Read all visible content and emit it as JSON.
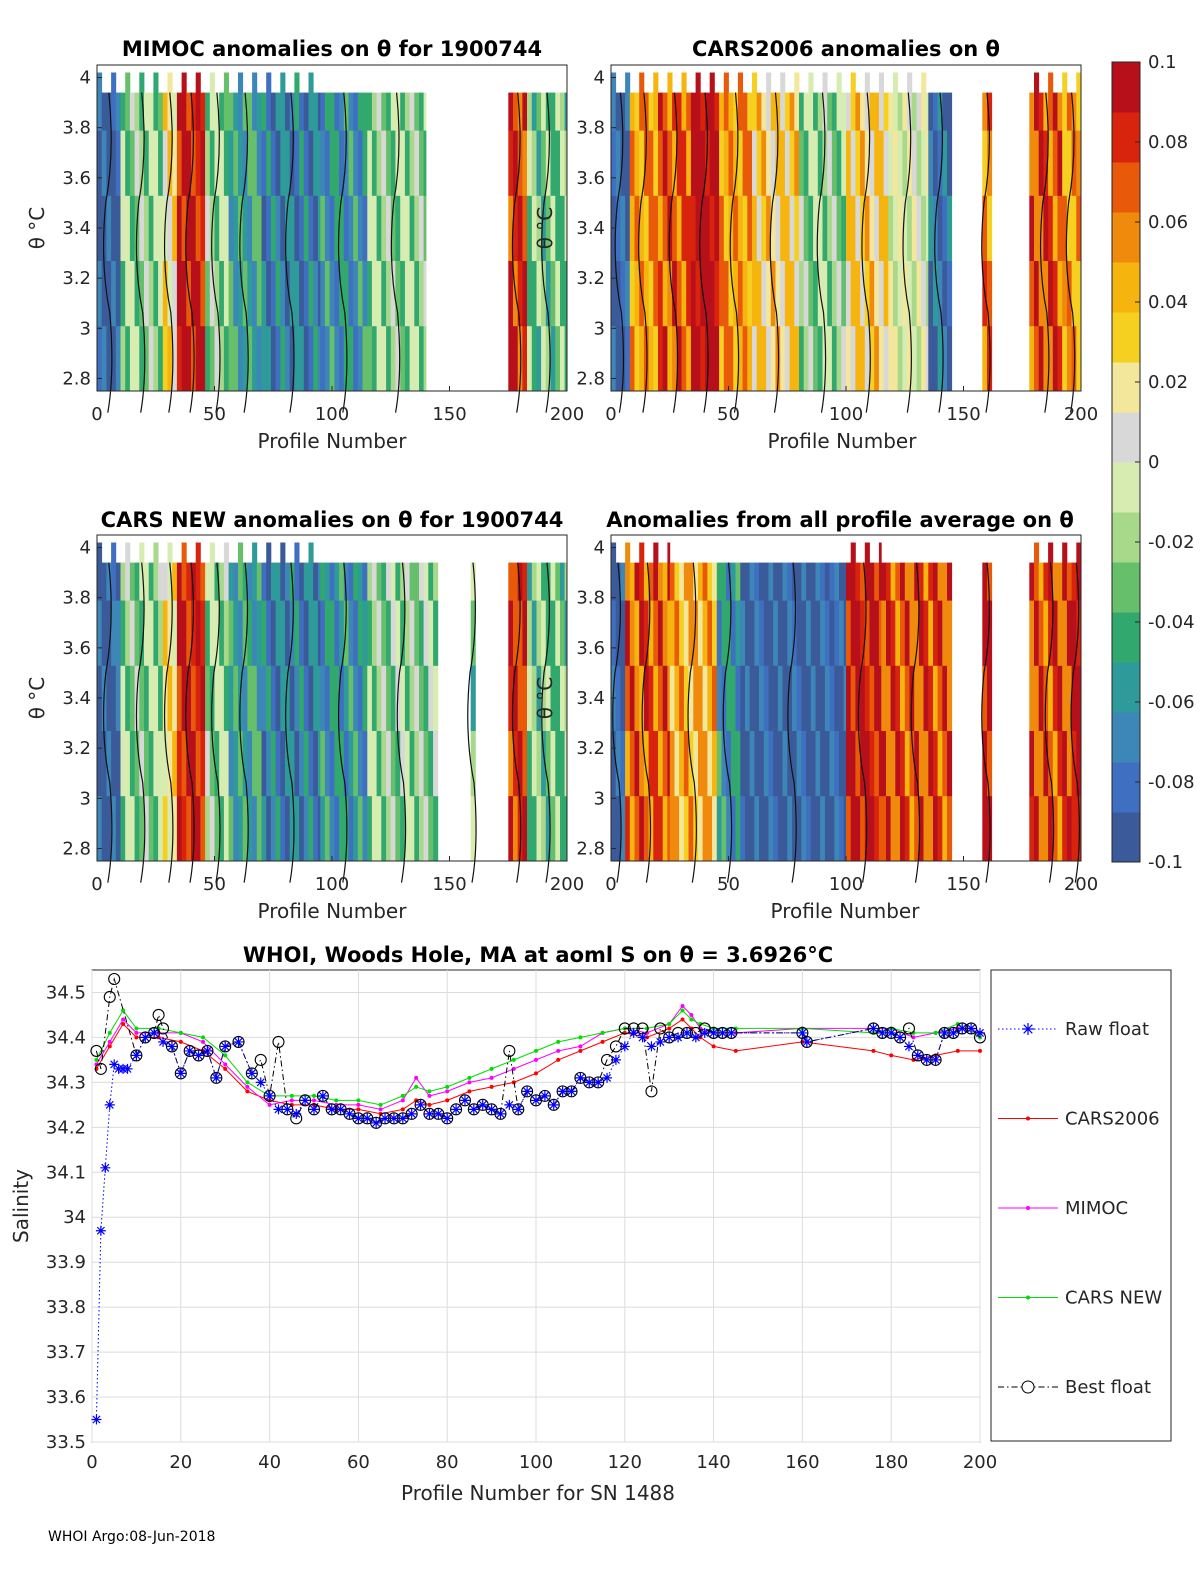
{
  "footer": "WHOI Argo:08-Jun-2018",
  "colorbar": {
    "ticks": [
      "0.1",
      "0.08",
      "0.06",
      "0.04",
      "0.02",
      "0",
      "-0.02",
      "-0.04",
      "-0.06",
      "-0.08",
      "-0.1"
    ],
    "range": [
      -0.1,
      0.1
    ],
    "colors": [
      "#3b5a9a",
      "#3f6fc0",
      "#3d86b8",
      "#2e9a9a",
      "#30a86e",
      "#66bf6a",
      "#a8d88a",
      "#d6ecb0",
      "#d8d8d8",
      "#f2e79a",
      "#f5d020",
      "#f6b40f",
      "#f08a0c",
      "#e85a0a",
      "#d8240d",
      "#b8101a"
    ]
  },
  "chart_data": [
    {
      "type": "heatmap",
      "title": "MIMOC anomalies on θ  for 1900744",
      "xlabel": "Profile Number",
      "ylabel": "θ °C",
      "xlim": [
        0,
        200
      ],
      "ylim": [
        2.75,
        4.05
      ],
      "xticks": [
        "0",
        "50",
        "100",
        "150",
        "200"
      ],
      "yticks": [
        "2.8",
        "3",
        "3.2",
        "3.4",
        "3.6",
        "3.8",
        "4"
      ],
      "pattern": [
        {
          "from": 0,
          "to": 10,
          "value": -0.09
        },
        {
          "from": 10,
          "to": 28,
          "value": -0.02
        },
        {
          "from": 28,
          "to": 34,
          "value": 0.02
        },
        {
          "from": 34,
          "to": 46,
          "value": 0.09
        },
        {
          "from": 46,
          "to": 56,
          "value": -0.02
        },
        {
          "from": 56,
          "to": 70,
          "value": -0.05
        },
        {
          "from": 70,
          "to": 95,
          "value": -0.07
        },
        {
          "from": 95,
          "to": 115,
          "value": -0.06
        },
        {
          "from": 115,
          "to": 140,
          "value": -0.02
        },
        {
          "from": 175,
          "to": 183,
          "value": 0.08
        },
        {
          "from": 183,
          "to": 200,
          "value": -0.03
        }
      ]
    },
    {
      "type": "heatmap",
      "title": "CARS2006 anomalies on θ",
      "xlabel": "Profile Number",
      "ylabel": "θ °C",
      "xlim": [
        0,
        200
      ],
      "ylim": [
        2.75,
        4.05
      ],
      "xticks": [
        "0",
        "50",
        "100",
        "150",
        "200"
      ],
      "yticks": [
        "2.8",
        "3",
        "3.2",
        "3.4",
        "3.6",
        "3.8",
        "4"
      ],
      "pattern": [
        {
          "from": 0,
          "to": 8,
          "value": -0.09
        },
        {
          "from": 8,
          "to": 20,
          "value": 0.05
        },
        {
          "from": 20,
          "to": 34,
          "value": 0.07
        },
        {
          "from": 34,
          "to": 46,
          "value": 0.1
        },
        {
          "from": 46,
          "to": 60,
          "value": 0.05
        },
        {
          "from": 60,
          "to": 80,
          "value": 0.03
        },
        {
          "from": 80,
          "to": 100,
          "value": -0.02
        },
        {
          "from": 100,
          "to": 118,
          "value": 0.03
        },
        {
          "from": 118,
          "to": 135,
          "value": 0.0
        },
        {
          "from": 135,
          "to": 145,
          "value": -0.08
        },
        {
          "from": 158,
          "to": 162,
          "value": 0.06
        },
        {
          "from": 178,
          "to": 192,
          "value": 0.07
        },
        {
          "from": 192,
          "to": 200,
          "value": 0.05
        }
      ]
    },
    {
      "type": "heatmap",
      "title": "CARS NEW anomalies on θ for 1900744",
      "xlabel": "Profile Number",
      "ylabel": "θ °C",
      "xlim": [
        0,
        200
      ],
      "ylim": [
        2.75,
        4.05
      ],
      "xticks": [
        "0",
        "50",
        "100",
        "150",
        "200"
      ],
      "yticks": [
        "2.8",
        "3",
        "3.2",
        "3.4",
        "3.6",
        "3.8",
        "4"
      ],
      "pattern": [
        {
          "from": 0,
          "to": 10,
          "value": -0.09
        },
        {
          "from": 10,
          "to": 28,
          "value": -0.02
        },
        {
          "from": 28,
          "to": 34,
          "value": 0.02
        },
        {
          "from": 34,
          "to": 46,
          "value": 0.09
        },
        {
          "from": 46,
          "to": 56,
          "value": -0.02
        },
        {
          "from": 56,
          "to": 70,
          "value": -0.05
        },
        {
          "from": 70,
          "to": 95,
          "value": -0.07
        },
        {
          "from": 95,
          "to": 115,
          "value": -0.06
        },
        {
          "from": 115,
          "to": 145,
          "value": -0.02
        },
        {
          "from": 159,
          "to": 161,
          "value": -0.03
        },
        {
          "from": 175,
          "to": 183,
          "value": 0.08
        },
        {
          "from": 183,
          "to": 200,
          "value": -0.03
        }
      ]
    },
    {
      "type": "heatmap",
      "title": "Anomalies from all profile average on θ",
      "xlabel": "Profile Number",
      "ylabel": "θ °C",
      "xlim": [
        0,
        200
      ],
      "ylim": [
        2.75,
        4.05
      ],
      "xticks": [
        "0",
        "50",
        "100",
        "150",
        "200"
      ],
      "yticks": [
        "2.8",
        "3",
        "3.2",
        "3.4",
        "3.6",
        "3.8",
        "4"
      ],
      "pattern": [
        {
          "from": 0,
          "to": 6,
          "value": -0.09
        },
        {
          "from": 6,
          "to": 25,
          "value": 0.07
        },
        {
          "from": 25,
          "to": 45,
          "value": 0.04
        },
        {
          "from": 45,
          "to": 55,
          "value": -0.06
        },
        {
          "from": 55,
          "to": 100,
          "value": -0.09
        },
        {
          "from": 100,
          "to": 115,
          "value": 0.09
        },
        {
          "from": 115,
          "to": 145,
          "value": 0.07
        },
        {
          "from": 158,
          "to": 162,
          "value": 0.09
        },
        {
          "from": 178,
          "to": 196,
          "value": 0.07
        },
        {
          "from": 196,
          "to": 200,
          "value": 0.1
        }
      ]
    },
    {
      "type": "line",
      "title": "WHOI, Woods Hole, MA at aoml S on θ = 3.6926°C",
      "xlabel": "Profile Number for SN 1488",
      "ylabel": "Salinity",
      "xlim": [
        0,
        200
      ],
      "ylim": [
        33.5,
        34.55
      ],
      "xticks": [
        "0",
        "20",
        "40",
        "60",
        "80",
        "100",
        "120",
        "140",
        "160",
        "180",
        "200"
      ],
      "yticks": [
        "33.5",
        "33.6",
        "33.7",
        "33.8",
        "33.9",
        "34",
        "34.1",
        "34.2",
        "34.3",
        "34.4",
        "34.5"
      ],
      "legend_position": "outside-right",
      "series": [
        {
          "name": "Raw float",
          "color": "#0000ff",
          "marker": "asterisk",
          "x": [
            1,
            2,
            3,
            4,
            5,
            6,
            7,
            8,
            10,
            12,
            14,
            16,
            18,
            20,
            22,
            24,
            26,
            28,
            30,
            33,
            36,
            38,
            40,
            42,
            44,
            46,
            48,
            50,
            52,
            54,
            56,
            58,
            60,
            62,
            64,
            66,
            68,
            70,
            72,
            74,
            76,
            78,
            80,
            82,
            84,
            86,
            88,
            90,
            92,
            94,
            96,
            98,
            100,
            102,
            104,
            106,
            108,
            110,
            112,
            114,
            116,
            118,
            120,
            122,
            124,
            126,
            128,
            130,
            132,
            134,
            136,
            138,
            140,
            142,
            144,
            160,
            161,
            176,
            178,
            180,
            182,
            184,
            186,
            188,
            190,
            192,
            194,
            196,
            198,
            200
          ],
          "y": [
            33.55,
            33.97,
            34.11,
            34.25,
            34.34,
            34.33,
            34.33,
            34.33,
            34.36,
            34.4,
            34.41,
            34.39,
            34.38,
            34.32,
            34.37,
            34.36,
            34.37,
            34.31,
            34.38,
            34.39,
            34.32,
            34.3,
            34.27,
            34.24,
            34.24,
            34.23,
            34.26,
            34.24,
            34.27,
            34.24,
            34.24,
            34.23,
            34.22,
            34.22,
            34.21,
            34.22,
            34.22,
            34.22,
            34.23,
            34.25,
            34.23,
            34.23,
            34.22,
            34.24,
            34.26,
            34.24,
            34.25,
            34.24,
            34.23,
            34.25,
            34.24,
            34.28,
            34.26,
            34.27,
            34.25,
            34.28,
            34.28,
            34.31,
            34.3,
            34.3,
            34.31,
            34.35,
            34.38,
            34.41,
            34.4,
            34.38,
            34.39,
            34.4,
            34.4,
            34.41,
            34.4,
            34.41,
            34.41,
            34.41,
            34.41,
            34.41,
            34.39,
            34.42,
            34.41,
            34.41,
            34.4,
            34.38,
            34.36,
            34.35,
            34.35,
            34.41,
            34.41,
            34.42,
            34.42,
            34.41
          ]
        },
        {
          "name": "CARS2006",
          "color": "#ff0000",
          "marker": "dot",
          "x": [
            1,
            4,
            7,
            10,
            15,
            20,
            25,
            30,
            35,
            40,
            45,
            50,
            55,
            60,
            65,
            70,
            73,
            76,
            80,
            85,
            90,
            95,
            100,
            105,
            110,
            115,
            120,
            125,
            130,
            133,
            135,
            137,
            140,
            145,
            160,
            176,
            180,
            185,
            190,
            195,
            200
          ],
          "y": [
            34.33,
            34.38,
            34.43,
            34.4,
            34.4,
            34.39,
            34.37,
            34.33,
            34.28,
            34.26,
            34.25,
            34.25,
            34.24,
            34.24,
            34.23,
            34.24,
            34.26,
            34.25,
            34.26,
            34.28,
            34.29,
            34.3,
            34.32,
            34.35,
            34.37,
            34.39,
            34.41,
            34.4,
            34.42,
            34.44,
            34.42,
            34.4,
            34.38,
            34.37,
            34.39,
            34.37,
            34.36,
            34.35,
            34.36,
            34.37,
            34.37
          ]
        },
        {
          "name": "MIMOC",
          "color": "#ff00ff",
          "marker": "dot",
          "x": [
            1,
            4,
            7,
            10,
            15,
            20,
            25,
            30,
            35,
            40,
            45,
            50,
            55,
            60,
            65,
            70,
            73,
            76,
            80,
            85,
            90,
            95,
            100,
            105,
            110,
            115,
            120,
            125,
            130,
            133,
            135,
            137,
            140,
            145,
            160,
            176,
            180,
            185,
            190,
            195,
            200
          ],
          "y": [
            34.34,
            34.39,
            34.44,
            34.41,
            34.41,
            34.41,
            34.39,
            34.34,
            34.29,
            34.25,
            34.26,
            34.26,
            34.25,
            34.25,
            34.24,
            34.26,
            34.31,
            34.27,
            34.28,
            34.3,
            34.31,
            34.33,
            34.35,
            34.37,
            34.38,
            34.41,
            34.42,
            34.41,
            34.43,
            34.47,
            34.45,
            34.42,
            34.41,
            34.41,
            34.42,
            34.42,
            34.42,
            34.4,
            34.41,
            34.42,
            34.41
          ]
        },
        {
          "name": "CARS NEW",
          "color": "#00dd00",
          "marker": "dot",
          "x": [
            1,
            4,
            7,
            10,
            15,
            20,
            25,
            30,
            35,
            40,
            45,
            50,
            55,
            60,
            65,
            70,
            73,
            76,
            80,
            85,
            90,
            95,
            100,
            105,
            110,
            115,
            120,
            125,
            130,
            133,
            135,
            137,
            140,
            145,
            160,
            176,
            180,
            185,
            190,
            195,
            200
          ],
          "y": [
            34.35,
            34.41,
            34.46,
            34.42,
            34.42,
            34.41,
            34.4,
            34.36,
            34.3,
            34.27,
            34.27,
            34.27,
            34.26,
            34.26,
            34.25,
            34.27,
            34.29,
            34.28,
            34.29,
            34.31,
            34.33,
            34.35,
            34.37,
            34.39,
            34.4,
            34.41,
            34.42,
            34.42,
            34.43,
            34.46,
            34.44,
            34.43,
            34.42,
            34.42,
            34.42,
            34.41,
            34.42,
            34.41,
            34.41,
            34.43,
            34.4
          ]
        },
        {
          "name": "Best float",
          "color": "#000000",
          "marker": "circle",
          "x": [
            1,
            2,
            4,
            5,
            10,
            12,
            14,
            15,
            16,
            18,
            20,
            22,
            24,
            26,
            28,
            30,
            33,
            36,
            38,
            40,
            42,
            44,
            46,
            48,
            50,
            52,
            54,
            56,
            58,
            60,
            62,
            64,
            66,
            68,
            70,
            72,
            74,
            76,
            78,
            80,
            82,
            84,
            86,
            88,
            90,
            92,
            94,
            96,
            98,
            100,
            102,
            104,
            106,
            108,
            110,
            112,
            114,
            116,
            118,
            120,
            122,
            124,
            126,
            128,
            130,
            132,
            134,
            136,
            138,
            140,
            142,
            144,
            160,
            161,
            176,
            178,
            180,
            182,
            184,
            186,
            188,
            190,
            192,
            194,
            196,
            198,
            200
          ],
          "y": [
            34.37,
            34.33,
            34.49,
            34.53,
            34.36,
            34.4,
            34.41,
            34.45,
            34.42,
            34.38,
            34.32,
            34.37,
            34.36,
            34.37,
            34.31,
            34.38,
            34.39,
            34.32,
            34.35,
            34.27,
            34.39,
            34.24,
            34.22,
            34.26,
            34.24,
            34.27,
            34.24,
            34.24,
            34.23,
            34.22,
            34.22,
            34.21,
            34.22,
            34.22,
            34.22,
            34.23,
            34.25,
            34.23,
            34.23,
            34.22,
            34.24,
            34.26,
            34.24,
            34.25,
            34.24,
            34.23,
            34.37,
            34.24,
            34.28,
            34.26,
            34.27,
            34.25,
            34.28,
            34.28,
            34.31,
            34.3,
            34.3,
            34.35,
            34.38,
            34.42,
            34.42,
            34.42,
            34.28,
            34.42,
            34.4,
            34.41,
            34.41,
            34.41,
            34.42,
            34.41,
            34.41,
            34.41,
            34.41,
            34.39,
            34.42,
            34.41,
            34.41,
            34.4,
            34.42,
            34.36,
            34.35,
            34.35,
            34.41,
            34.41,
            34.42,
            34.42,
            34.4
          ]
        }
      ]
    }
  ]
}
